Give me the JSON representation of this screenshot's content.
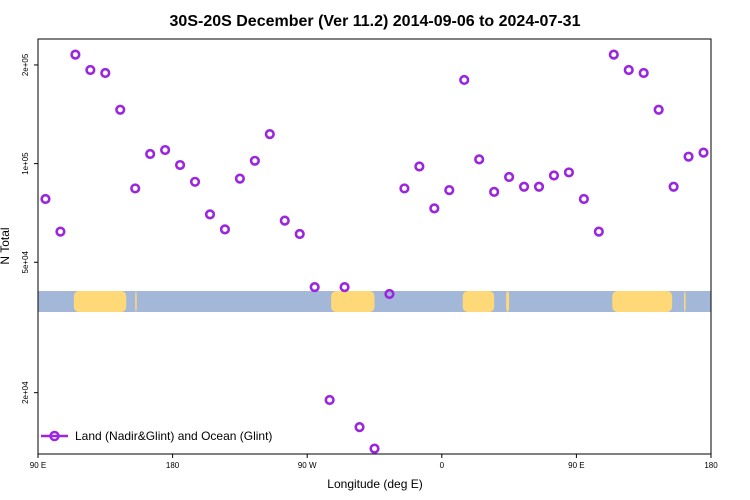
{
  "chart_data": {
    "type": "scatter",
    "title": "30S-20S December (Ver 11.2)   2014-09-06 to 2024-07-31",
    "xlabel": "Longitude (deg E)",
    "ylabel": "N Total",
    "x_scale": "linear",
    "y_scale": "log",
    "xlim": [
      90,
      540
    ],
    "ylim": [
      13000,
      240000
    ],
    "x_ticks": [
      {
        "value": 90,
        "label": "90 E"
      },
      {
        "value": 180,
        "label": "180"
      },
      {
        "value": 270,
        "label": "90 W"
      },
      {
        "value": 360,
        "label": "0"
      },
      {
        "value": 450,
        "label": "90 E"
      },
      {
        "value": 540,
        "label": "180"
      }
    ],
    "y_ticks": [
      {
        "value": 20000,
        "label": "2e+04"
      },
      {
        "value": 50000,
        "label": "5e+04"
      },
      {
        "value": 100000,
        "label": "1e+05"
      },
      {
        "value": 200000,
        "label": "2e+05"
      }
    ],
    "grid": false,
    "legend_position": "bottom-left",
    "series": [
      {
        "name": "Land (Nadir&Glint) and Ocean (Glint)",
        "color": "#9a26e0",
        "marker": "open-circle",
        "x": [
          95,
          105,
          115,
          125,
          135,
          145,
          155,
          165,
          175,
          185,
          195,
          205,
          215,
          225,
          235,
          245,
          255,
          265,
          275,
          285,
          295,
          305,
          315,
          325,
          335,
          345,
          355,
          365,
          375,
          385,
          395,
          405,
          415,
          425,
          435,
          445,
          455,
          465,
          475,
          485,
          495,
          505,
          515,
          525,
          535
        ],
        "y": [
          78000,
          62000,
          215000,
          193000,
          189000,
          146000,
          84000,
          107000,
          110000,
          99000,
          88000,
          70000,
          63000,
          90000,
          102000,
          123000,
          67000,
          61000,
          42000,
          19000,
          42000,
          15700,
          13500,
          40000,
          84000,
          98000,
          73000,
          83000,
          180000,
          103000,
          82000,
          91000,
          85000,
          85000,
          92000,
          94000,
          78000,
          62000,
          215000,
          193000,
          189000,
          146000,
          85000,
          105000,
          108000
        ]
      }
    ],
    "map_strip": {
      "ocean_color": "#a3b8d8",
      "land_color": "#ffd978",
      "lon_range": [
        90,
        540
      ],
      "land": [
        {
          "lon": [
            114,
            149
          ]
        },
        {
          "lon": [
            155,
            156
          ]
        },
        {
          "lon": [
            286,
            315
          ]
        },
        {
          "lon": [
            374,
            395
          ]
        },
        {
          "lon": [
            403,
            405
          ]
        },
        {
          "lon": [
            474,
            514
          ]
        },
        {
          "lon": [
            522,
            523
          ]
        }
      ]
    }
  }
}
